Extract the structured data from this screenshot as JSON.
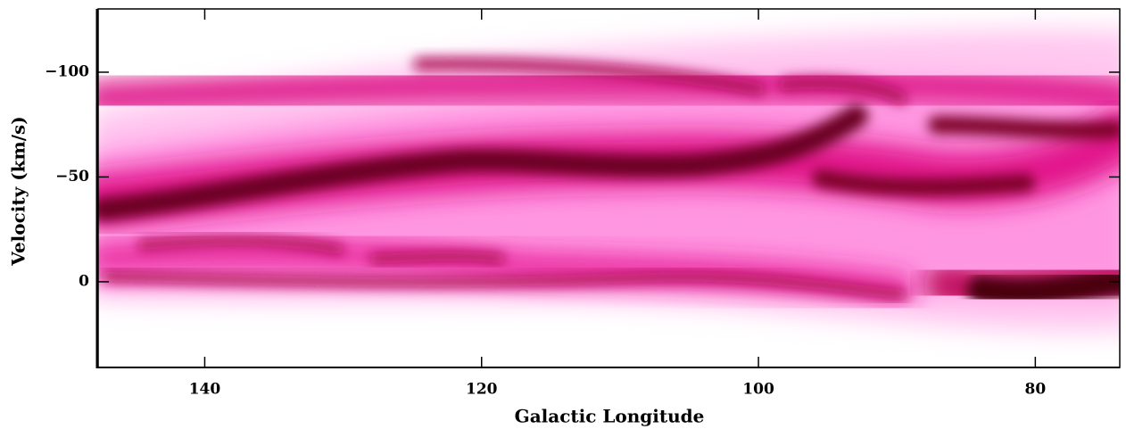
{
  "chart_data": {
    "type": "lv-diagram",
    "xlabel": "Galactic Longitude",
    "ylabel": "Velocity (km/s)",
    "xlim": [
      147.7,
      73.9
    ],
    "ylim": [
      40.9,
      -130.2
    ],
    "xticks": [
      140,
      120,
      100,
      80
    ],
    "yticks": [
      {
        "value": -100,
        "label": "−100"
      },
      {
        "value": -50,
        "label": "−50"
      },
      0
    ]
  }
}
